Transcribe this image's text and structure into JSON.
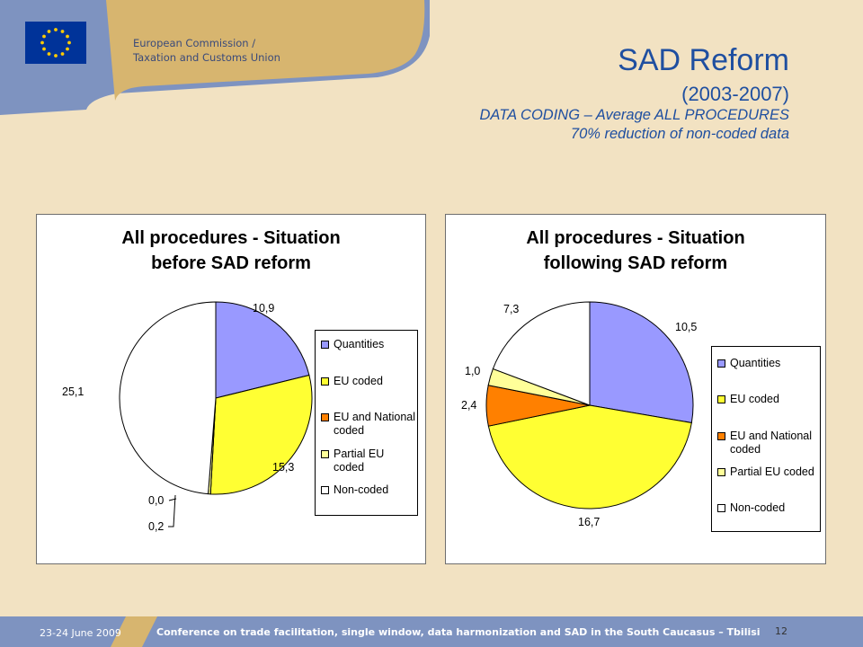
{
  "header": {
    "org_line1": "European Commission /",
    "org_line2": "Taxation and Customs Union",
    "title": "SAD Reform",
    "years": "(2003-2007)",
    "subtitle1": "DATA CODING – Average ALL PROCEDURES",
    "subtitle2": "70% reduction of non-coded data"
  },
  "colors": {
    "background": "#F2E2C2",
    "title": "#1F4FA0",
    "footer": "#7E93C0",
    "Quantities": "#9999FF",
    "EU coded": "#FFFF33",
    "EU and National coded": "#FF8000",
    "Partial EU coded": "#FFFF99",
    "Non-coded": "#FFFFFF"
  },
  "footer": {
    "date": "23-24 June 2009",
    "conference": "Conference on trade facilitation, single window, data harmonization and SAD in the South Caucasus – Tbilisi",
    "page": "12"
  },
  "chart_data": [
    {
      "type": "pie",
      "title_line1": "All procedures - Situation",
      "title_line2": "before SAD reform",
      "legend_position": "right",
      "categories": [
        "Quantities",
        "EU coded",
        "EU and National coded",
        "Partial EU coded",
        "Non-coded"
      ],
      "legend_labels": [
        [
          "Quantities"
        ],
        [
          "EU coded"
        ],
        [
          "EU and National",
          "coded"
        ],
        [
          "Partial EU coded"
        ],
        [
          "Non-coded"
        ]
      ],
      "values": [
        10.9,
        15.3,
        0.0,
        0.2,
        25.1
      ],
      "value_labels": [
        "10,9",
        "15,3",
        "0,0",
        "0,2",
        "25,1"
      ]
    },
    {
      "type": "pie",
      "title_line1": "All procedures - Situation",
      "title_line2": "following SAD reform",
      "legend_position": "right",
      "categories": [
        "Quantities",
        "EU coded",
        "EU and National coded",
        "Partial EU coded",
        "Non-coded"
      ],
      "legend_labels": [
        [
          "Quantities"
        ],
        [
          "EU coded"
        ],
        [
          "EU and National",
          "coded"
        ],
        [
          "Partial EU coded"
        ],
        [
          "Non-coded"
        ]
      ],
      "values": [
        10.5,
        16.7,
        2.4,
        1.0,
        7.3
      ],
      "value_labels": [
        "10,5",
        "16,7",
        "2,4",
        "1,0",
        "7,3"
      ]
    }
  ]
}
